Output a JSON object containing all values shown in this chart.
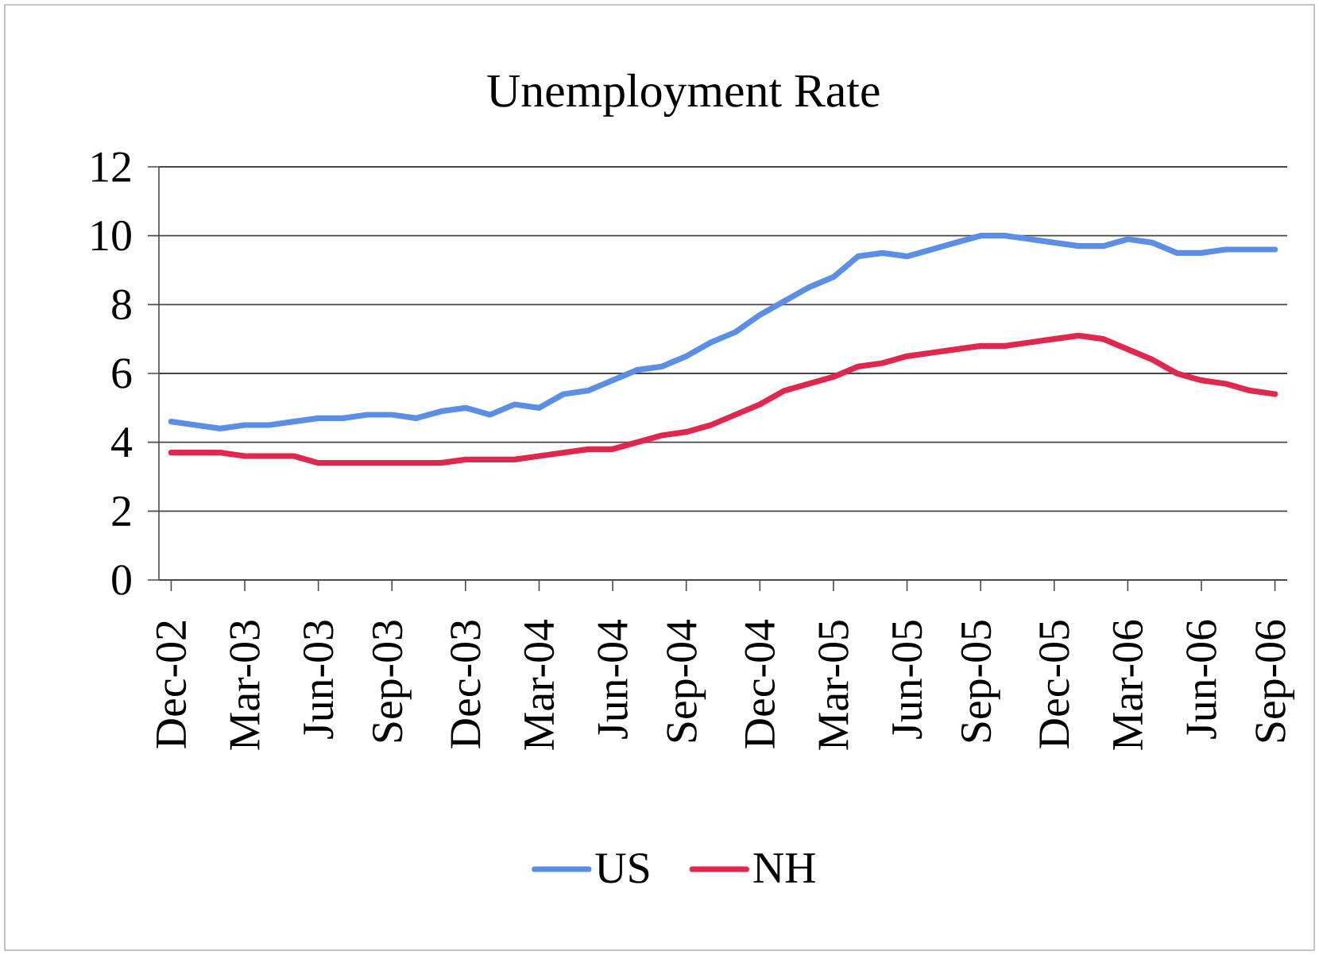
{
  "chart_data": {
    "type": "line",
    "title": "Unemployment Rate",
    "categories": [
      "Dec-02",
      null,
      null,
      "Mar-03",
      null,
      null,
      "Jun-03",
      null,
      null,
      "Sep-03",
      null,
      null,
      "Dec-03",
      null,
      null,
      "Mar-04",
      null,
      null,
      "Jun-04",
      null,
      null,
      "Sep-04",
      null,
      null,
      "Dec-04",
      null,
      null,
      "Mar-05",
      null,
      null,
      "Jun-05",
      null,
      null,
      "Sep-05",
      null,
      null,
      "Dec-05",
      null,
      null,
      "Mar-06",
      null,
      null,
      "Jun-06",
      null,
      null,
      "Sep-06"
    ],
    "series": [
      {
        "name": "US",
        "color": "#5b8ee6",
        "values": [
          4.6,
          4.5,
          4.4,
          4.5,
          4.5,
          4.6,
          4.7,
          4.7,
          4.8,
          4.8,
          4.7,
          4.9,
          5.0,
          4.8,
          5.1,
          5.0,
          5.4,
          5.5,
          5.8,
          6.1,
          6.2,
          6.5,
          6.9,
          7.2,
          7.7,
          8.1,
          8.5,
          8.8,
          9.4,
          9.5,
          9.4,
          9.6,
          9.8,
          10.0,
          10.0,
          9.9,
          9.8,
          9.7,
          9.7,
          9.9,
          9.8,
          9.5,
          9.5,
          9.6,
          9.6,
          9.6
        ]
      },
      {
        "name": "NH",
        "color": "#e0284f",
        "values": [
          3.7,
          3.7,
          3.7,
          3.6,
          3.6,
          3.6,
          3.4,
          3.4,
          3.4,
          3.4,
          3.4,
          3.4,
          3.5,
          3.5,
          3.5,
          3.6,
          3.7,
          3.8,
          3.8,
          4.0,
          4.2,
          4.3,
          4.5,
          4.8,
          5.1,
          5.5,
          5.7,
          5.9,
          6.2,
          6.3,
          6.5,
          6.6,
          6.7,
          6.8,
          6.8,
          6.9,
          7.0,
          7.1,
          7.0,
          6.7,
          6.4,
          6.0,
          5.8,
          5.7,
          5.5,
          5.4
        ]
      }
    ],
    "ylim": [
      0,
      12
    ],
    "yticks": [
      0,
      2,
      4,
      6,
      8,
      10,
      12
    ],
    "grid": "y",
    "legend": "bottom"
  }
}
